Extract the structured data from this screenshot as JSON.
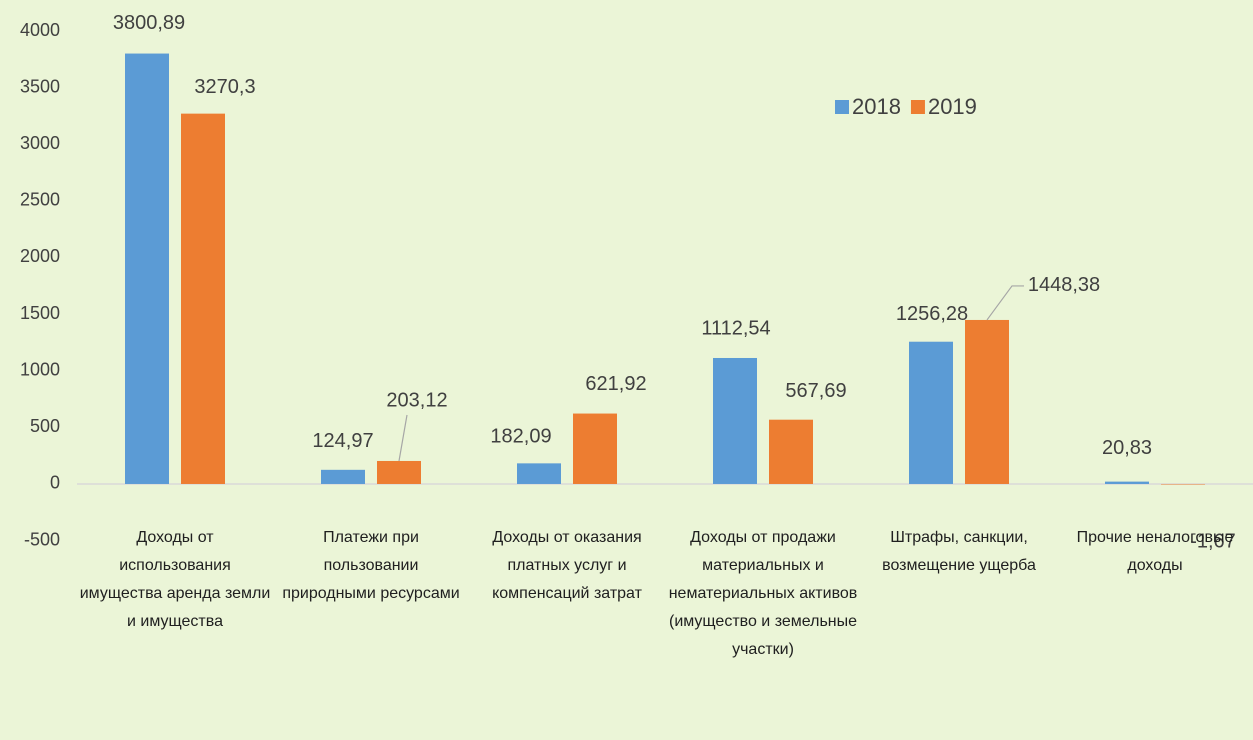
{
  "chart_data": {
    "type": "bar",
    "categories": [
      "Доходы от использования имущества аренда земли и имущества",
      "Платежи при пользовании природными ресурсами",
      "Доходы от оказания платных услуг и компенсаций затрат",
      "Доходы от продажи материальных и нематериальных активов (имущество и земельные участки)",
      "Штрафы, санкции, возмещение ущерба",
      "Прочие неналоговые доходы"
    ],
    "series": [
      {
        "name": "2018",
        "color": "#5b9bd5",
        "values": [
          3800.89,
          124.97,
          182.09,
          1112.54,
          1256.28,
          20.83
        ],
        "value_labels": [
          "3800,89",
          "124,97",
          "182,09",
          "1112,54",
          "1256,28",
          "20,83"
        ]
      },
      {
        "name": "2019",
        "color": "#ed7d31",
        "values": [
          3270.3,
          203.12,
          621.92,
          567.69,
          1448.38,
          -1.67
        ],
        "value_labels": [
          "3270,3",
          "203,12",
          "621,92",
          "567,69",
          "1448,38",
          "-1,67"
        ]
      }
    ],
    "ylim": [
      -500,
      4000
    ],
    "yticks": [
      -500,
      0,
      500,
      1000,
      1500,
      2000,
      2500,
      3000,
      3500,
      4000
    ],
    "legend": "top-right"
  }
}
